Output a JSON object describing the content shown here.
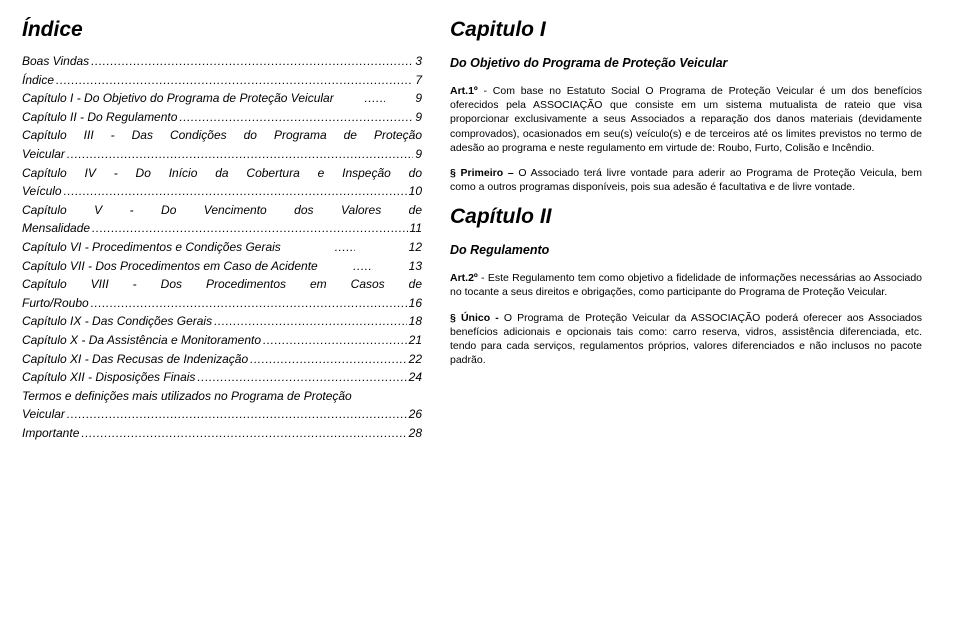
{
  "left": {
    "title": "Índice",
    "toc": [
      {
        "label": "Boas Vindas",
        "page": "3"
      },
      {
        "label": "Índice",
        "page": "7"
      },
      {
        "label": "Capítulo I - Do Objetivo do Programa de Proteção Veicular",
        "page": "9",
        "tight": true
      },
      {
        "label": "Capítulo II - Do Regulamento",
        "page": "9"
      },
      {
        "multi": true,
        "line1": "Capítulo III - Das Condições do Programa de Proteção",
        "label2": "Veicular",
        "page": "9"
      },
      {
        "multi": true,
        "line1": "Capítulo IV - Do Início da Cobertura e Inspeção do",
        "label2": "Veículo",
        "page": "10"
      },
      {
        "multi": true,
        "line1": "Capítulo V - Do Vencimento dos Valores de",
        "label2": "Mensalidade",
        "page": "11"
      },
      {
        "label": "Capítulo VI - Procedimentos e Condições Gerais",
        "page": "12",
        "tight": true
      },
      {
        "label": "Capítulo VII - Dos Procedimentos em Caso de Acidente",
        "page": "13",
        "tight": true
      },
      {
        "multi": true,
        "line1": "Capítulo VIII - Dos Procedimentos em Casos de",
        "label2": "Furto/Roubo",
        "page": "16"
      },
      {
        "label": "Capítulo IX - Das Condições Gerais",
        "page": "18"
      },
      {
        "label": "Capítulo X - Da Assistência e Monitoramento",
        "page": "21"
      },
      {
        "label": "Capítulo XI - Das Recusas de Indenização",
        "page": "22"
      },
      {
        "label": "Capítulo XII - Disposições Finais",
        "page": "24"
      },
      {
        "multi": true,
        "plain1": true,
        "line1": "Termos e definições mais utilizados no Programa de Proteção",
        "label2": "Veicular",
        "page": "26"
      },
      {
        "label": "Importante",
        "page": "28"
      }
    ]
  },
  "right": {
    "cap1_title": "Capitulo I",
    "cap1_sub": "Do Objetivo do Programa de Proteção Veicular",
    "art1_lead": "Art.1º",
    "art1_body": " - Com base no Estatuto Social O Programa de Proteção Veicular é um dos\nbenefícios oferecidos pela ASSOCIAÇÃO que consiste em um sistema mutualista\nde rateio que visa proporcionar exclusivamente a seus Associados a reparação dos\ndanos materiais (devidamente comprovados), ocasionados em seu(s) veículo(s) e\nde terceiros até os limites previstos no termo de adesão ao programa e neste\nregulamento em virtude de: Roubo, Furto, Colisão e Incêndio.",
    "p1_lead": "§ Primeiro –",
    "p1_body": " O Associado terá livre vontade para aderir ao Programa de Proteção Veicula, bem como a outros programas disponíveis, pois sua adesão é facultativa e de livre vontade.",
    "cap2_title": "Capítulo II",
    "cap2_sub": "Do Regulamento",
    "art2_lead": "Art.2º",
    "art2_body": " - Este Regulamento tem como objetivo a fidelidade de informações necessárias ao Associado no tocante a seus direitos e obrigações, como participante do Programa de Proteção Veicular.",
    "p2_lead": "§ Único -",
    "p2_body": " O Programa de Proteção Veicular da ASSOCIAÇÃO poderá oferecer aos Associados benefícios adicionais e opcionais tais como: carro reserva, vidros, assistência diferenciada, etc. tendo para cada serviços, regulamentos próprios, valores diferenciados e não inclusos no pacote padrão."
  }
}
